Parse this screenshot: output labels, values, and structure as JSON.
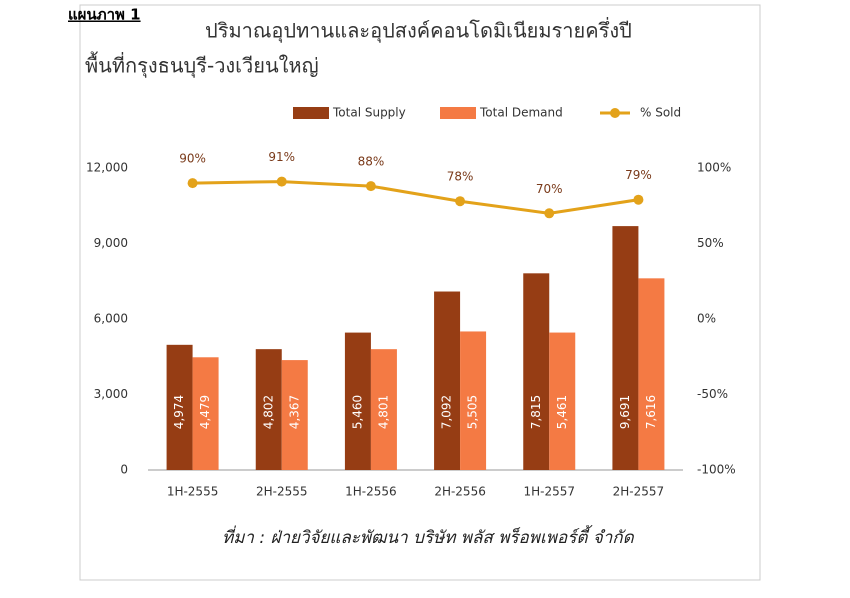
{
  "label": "แผนภาพ 1",
  "chart_data": {
    "type": "bar-line",
    "title": "ปริมาณอุปทานและอุปสงค์คอนโดมิเนียมรายครึ่งปี",
    "subtitle": "พื้นที่กรุงธนบุรี-วงเวียนใหญ่",
    "source": "ที่มา : ฝ่ายวิจัยและพัฒนา บริษัท พลัส พร็อพเพอร์ตี้ จำกัด",
    "categories": [
      "1H-2555",
      "2H-2555",
      "1H-2556",
      "2H-2556",
      "1H-2557",
      "2H-2557"
    ],
    "series": [
      {
        "name": "Total Supply",
        "color": "#963d14",
        "values": [
          4974,
          4802,
          5460,
          7092,
          7815,
          9691
        ],
        "value_labels": [
          "4,974",
          "4,802",
          "5,460",
          "7,092",
          "7,815",
          "9,691"
        ]
      },
      {
        "name": "Total Demand",
        "color": "#f47a44",
        "values": [
          4479,
          4367,
          4801,
          5505,
          5461,
          7616
        ],
        "value_labels": [
          "4,479",
          "4,367",
          "4,801",
          "5,505",
          "5,461",
          "7,616"
        ]
      },
      {
        "name": "% Sold",
        "color": "#e3a21a",
        "axis": "y2",
        "values": [
          90,
          91,
          88,
          78,
          70,
          79
        ],
        "value_labels": [
          "90%",
          "91%",
          "88%",
          "78%",
          "70%",
          "79%"
        ]
      }
    ],
    "ylim": [
      0,
      12000
    ],
    "yticks": [
      0,
      {
        "value": 3000,
        "label": "3,000"
      },
      {
        "value": 6000,
        "label": "6,000"
      },
      {
        "value": 9000,
        "label": "9,000"
      },
      {
        "value": 12000,
        "label": "12,000"
      }
    ],
    "y2lim": [
      -100,
      100
    ],
    "y2ticks": [
      {
        "value": -100,
        "label": "-100%"
      },
      {
        "value": -50,
        "label": "-50%"
      },
      {
        "value": 0,
        "label": "0%"
      },
      {
        "value": 50,
        "label": "50%"
      },
      {
        "value": 100,
        "label": "100%"
      }
    ],
    "legend": "top"
  }
}
